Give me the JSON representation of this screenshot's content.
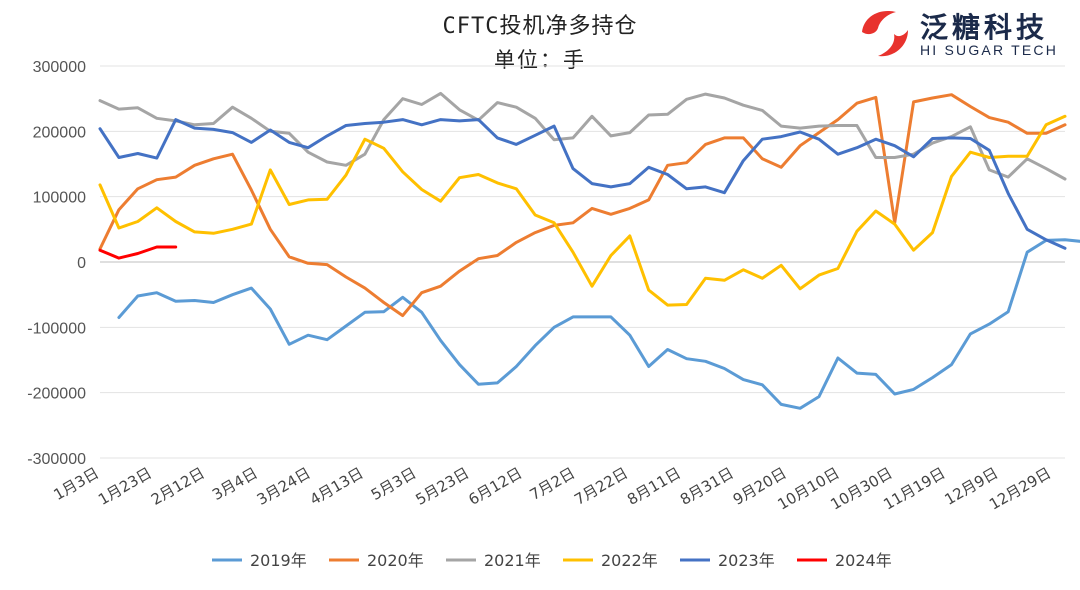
{
  "logo": {
    "cn": "泛糖科技",
    "en": "HI SUGAR TECH",
    "mark_color": "#e8322d"
  },
  "chart_data": {
    "type": "line",
    "title": "CFTC投机净多持仓",
    "subtitle": "单位：手",
    "ylim": [
      -300000,
      300000
    ],
    "yticks": [
      300000,
      200000,
      100000,
      0,
      -100000,
      -200000,
      -300000
    ],
    "ytick_labels": [
      "300000",
      "200000",
      "100000",
      "0",
      "-100000",
      "-200000",
      "-300000"
    ],
    "xtick_labels": [
      "1月3日",
      "1月23日",
      "2月12日",
      "3月4日",
      "3月24日",
      "4月13日",
      "5月3日",
      "5月23日",
      "6月12日",
      "7月2日",
      "7月22日",
      "8月11日",
      "8月31日",
      "9月20日",
      "10月10日",
      "10月30日",
      "11月19日",
      "12月9日",
      "12月29日"
    ],
    "legend_position": "bottom",
    "series": [
      {
        "name": "2019年",
        "color": "#5b9bd5",
        "start": 1,
        "values": [
          -85000,
          -52000,
          -47000,
          -60000,
          -59000,
          -62000,
          -50000,
          -40000,
          -72000,
          -126000,
          -112000,
          -119000,
          -98000,
          -77000,
          -76000,
          -54000,
          -77000,
          -120000,
          -157000,
          -187000,
          -185000,
          -160000,
          -128000,
          -100000,
          -84000,
          -84000,
          -84000,
          -112000,
          -160000,
          -134000,
          -148000,
          -152000,
          -163000,
          -180000,
          -188000,
          -218000,
          -224000,
          -206000,
          -147000,
          -170000,
          -172000,
          -202000,
          -195000,
          -177000,
          -157000,
          -110000,
          -95000,
          -76000,
          15000,
          33000,
          34000,
          31000
        ]
      },
      {
        "name": "2020年",
        "color": "#ed7d31",
        "start": 0,
        "values": [
          20000,
          80000,
          112000,
          126000,
          130000,
          148000,
          158000,
          165000,
          110000,
          50000,
          8000,
          -2000,
          -4000,
          -23000,
          -40000,
          -62000,
          -82000,
          -47000,
          -37000,
          -14000,
          5000,
          10000,
          30000,
          45000,
          56000,
          60000,
          82000,
          73000,
          82000,
          95000,
          148000,
          152000,
          180000,
          190000,
          190000,
          158000,
          145000,
          178000,
          198000,
          218000,
          243000,
          252000,
          60000,
          245000,
          251000,
          256000,
          238000,
          221000,
          214000,
          197000,
          197000,
          210000
        ]
      },
      {
        "name": "2021年",
        "color": "#a5a5a5",
        "start": 0,
        "values": [
          247000,
          234000,
          236000,
          220000,
          216000,
          210000,
          212000,
          237000,
          220000,
          200000,
          197000,
          168000,
          153000,
          148000,
          165000,
          218000,
          250000,
          241000,
          258000,
          233000,
          217000,
          244000,
          237000,
          220000,
          187000,
          190000,
          223000,
          193000,
          198000,
          225000,
          226000,
          249000,
          257000,
          251000,
          240000,
          232000,
          208000,
          205000,
          208000,
          209000,
          209000,
          160000,
          160000,
          165000,
          182000,
          192000,
          207000,
          141000,
          130000,
          158000,
          143000,
          127000
        ]
      },
      {
        "name": "2022年",
        "color": "#ffc000",
        "start": 0,
        "values": [
          118000,
          52000,
          62000,
          83000,
          62000,
          46000,
          44000,
          50000,
          58000,
          141000,
          88000,
          95000,
          96000,
          133000,
          188000,
          174000,
          138000,
          111000,
          93000,
          129000,
          134000,
          121000,
          112000,
          72000,
          60000,
          15000,
          -37000,
          10000,
          40000,
          -43000,
          -66000,
          -65000,
          -25000,
          -28000,
          -12000,
          -25000,
          -5000,
          -41000,
          -20000,
          -10000,
          47000,
          78000,
          58000,
          18000,
          45000,
          131000,
          168000,
          160000,
          162000,
          162000,
          210000,
          223000
        ]
      },
      {
        "name": "2023年",
        "color": "#4472c4",
        "start": 0,
        "values": [
          204000,
          160000,
          166000,
          159000,
          218000,
          205000,
          203000,
          198000,
          183000,
          202000,
          183000,
          175000,
          193000,
          209000,
          212000,
          214000,
          218000,
          210000,
          218000,
          216000,
          218000,
          190000,
          180000,
          194000,
          208000,
          143000,
          120000,
          115000,
          120000,
          145000,
          134000,
          112000,
          115000,
          106000,
          155000,
          188000,
          192000,
          199000,
          188000,
          165000,
          175000,
          188000,
          178000,
          161000,
          189000,
          190000,
          189000,
          171000,
          105000,
          50000,
          34000,
          21000
        ]
      },
      {
        "name": "2024年",
        "color": "#ff0000",
        "start": 0,
        "values": [
          18000,
          6000,
          13000,
          23000,
          23000
        ]
      }
    ]
  }
}
